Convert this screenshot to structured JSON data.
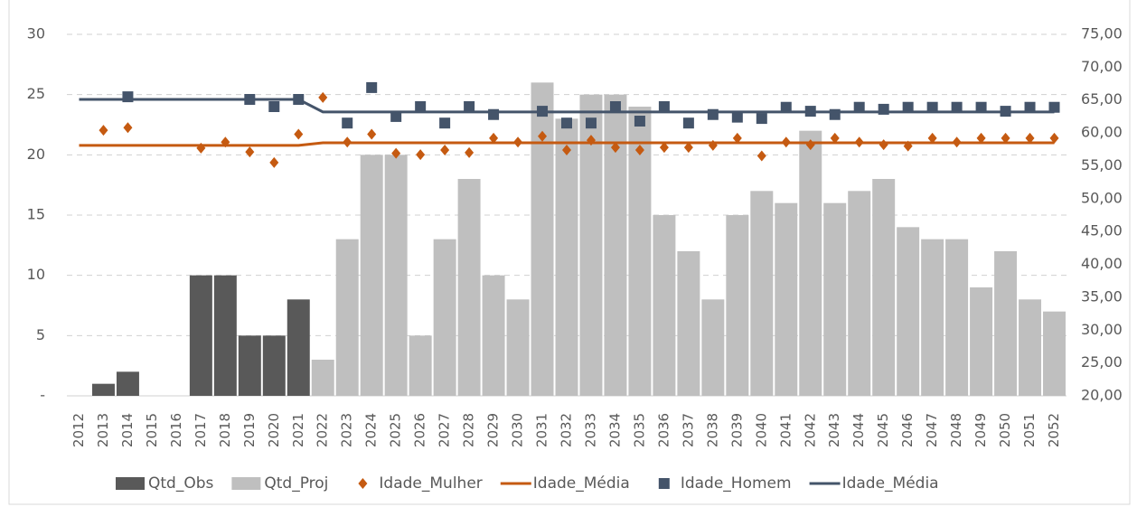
{
  "chart_data": {
    "type": "combo",
    "categories": [
      "2012",
      "2013",
      "2014",
      "2015",
      "2016",
      "2017",
      "2018",
      "2019",
      "2020",
      "2021",
      "2022",
      "2023",
      "2024",
      "2025",
      "2026",
      "2027",
      "2028",
      "2029",
      "2030",
      "2031",
      "2032",
      "2033",
      "2034",
      "2035",
      "2036",
      "2037",
      "2038",
      "2039",
      "2040",
      "2041",
      "2042",
      "2043",
      "2044",
      "2045",
      "2046",
      "2047",
      "2048",
      "2049",
      "2050",
      "2051",
      "2052"
    ],
    "ylim": [
      0,
      30
    ],
    "yticks": [
      {
        "value": 0,
        "label": "-"
      },
      5,
      10,
      15,
      20,
      25,
      30
    ],
    "y2lim": [
      20,
      75
    ],
    "y2ticks": [
      {
        "value": 20,
        "label": "20,00"
      },
      {
        "value": 25,
        "label": "25,00"
      },
      {
        "value": 30,
        "label": "30,00"
      },
      {
        "value": 35,
        "label": "35,00"
      },
      {
        "value": 40,
        "label": "40,00"
      },
      {
        "value": 45,
        "label": "45,00"
      },
      {
        "value": 50,
        "label": "50,00"
      },
      {
        "value": 55,
        "label": "55,00"
      },
      {
        "value": 60,
        "label": "60,00"
      },
      {
        "value": 65,
        "label": "65,00"
      },
      {
        "value": 70,
        "label": "70,00"
      },
      {
        "value": 75,
        "label": "75,00"
      }
    ],
    "grid": true,
    "legend": "bottom",
    "series": [
      {
        "name": "Qtd_Obs",
        "kind": "bar",
        "color": "#595959",
        "values": [
          0,
          1,
          2,
          0,
          0,
          10,
          10,
          5,
          5,
          8,
          null,
          null,
          null,
          null,
          null,
          null,
          null,
          null,
          null,
          null,
          null,
          null,
          null,
          null,
          null,
          null,
          null,
          null,
          null,
          null,
          null,
          null,
          null,
          null,
          null,
          null,
          null,
          null,
          null,
          null,
          null
        ]
      },
      {
        "name": "Qtd_Proj",
        "kind": "bar",
        "color": "#bfbfbf",
        "values": [
          null,
          null,
          null,
          null,
          null,
          null,
          null,
          null,
          null,
          null,
          3,
          13,
          20,
          20,
          5,
          13,
          18,
          10,
          8,
          26,
          23,
          25,
          25,
          24,
          15,
          12,
          8,
          15,
          17,
          16,
          22,
          16,
          17,
          18,
          14,
          13,
          13,
          9,
          12,
          8,
          7
        ]
      },
      {
        "name": "Idade_Mulher",
        "kind": "marker",
        "marker": "diamond",
        "axis": "y2",
        "color": "#c55a11",
        "values": [
          null,
          60.4,
          60.8,
          null,
          null,
          57.7,
          58.6,
          57.1,
          55.5,
          59.8,
          65.4,
          58.6,
          59.8,
          56.9,
          56.7,
          57.4,
          57.0,
          59.2,
          58.6,
          59.5,
          57.4,
          58.9,
          57.8,
          57.4,
          57.8,
          57.8,
          58.1,
          59.2,
          56.5,
          58.6,
          58.2,
          59.2,
          58.6,
          58.2,
          58.0,
          59.2,
          58.6,
          59.2,
          59.2,
          59.2,
          59.2
        ]
      },
      {
        "name": "Idade_Média",
        "kind": "line",
        "axis": "y2",
        "color": "#c55a11",
        "values": [
          58.1,
          58.1,
          58.1,
          58.1,
          58.1,
          58.1,
          58.1,
          58.1,
          58.1,
          58.1,
          58.5,
          58.5,
          58.5,
          58.5,
          58.5,
          58.5,
          58.5,
          58.5,
          58.5,
          58.5,
          58.5,
          58.5,
          58.5,
          58.5,
          58.5,
          58.5,
          58.5,
          58.5,
          58.5,
          58.5,
          58.5,
          58.5,
          58.5,
          58.5,
          58.5,
          58.5,
          58.5,
          58.5,
          58.5,
          58.5,
          58.5
        ]
      },
      {
        "name": "Idade_Homem",
        "kind": "marker",
        "marker": "square",
        "axis": "y2",
        "color": "#44546a",
        "values": [
          null,
          null,
          65.5,
          null,
          null,
          null,
          null,
          65.1,
          64.0,
          65.1,
          null,
          61.5,
          66.9,
          62.5,
          64.0,
          61.5,
          64.0,
          62.8,
          null,
          63.3,
          61.5,
          61.5,
          64.0,
          61.8,
          64.0,
          61.5,
          62.8,
          62.4,
          62.2,
          63.9,
          63.3,
          62.8,
          63.9,
          63.6,
          63.9,
          63.9,
          63.9,
          63.9,
          63.3,
          63.9,
          63.9
        ]
      },
      {
        "name": "Idade_Média",
        "kind": "line",
        "axis": "y2",
        "color": "#44546a",
        "values": [
          65.1,
          65.1,
          65.1,
          65.1,
          65.1,
          65.1,
          65.1,
          65.1,
          65.1,
          65.1,
          63.2,
          63.2,
          63.2,
          63.2,
          63.2,
          63.2,
          63.2,
          63.2,
          63.2,
          63.2,
          63.2,
          63.2,
          63.2,
          63.2,
          63.2,
          63.2,
          63.2,
          63.2,
          63.2,
          63.2,
          63.2,
          63.2,
          63.2,
          63.2,
          63.2,
          63.2,
          63.2,
          63.2,
          63.2,
          63.2,
          63.2
        ]
      }
    ]
  }
}
